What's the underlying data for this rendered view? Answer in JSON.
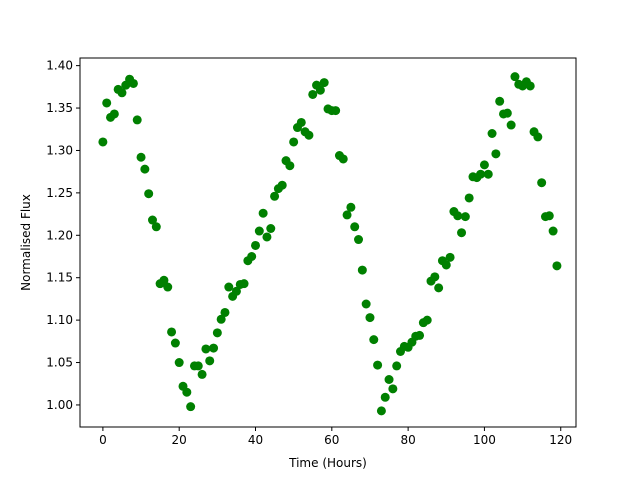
{
  "chart_data": {
    "type": "scatter",
    "title": "",
    "xlabel": "Time (Hours)",
    "ylabel": "Normalised Flux",
    "xlim": [
      -6,
      124
    ],
    "ylim": [
      0.974,
      1.409
    ],
    "xticks": [
      0,
      20,
      40,
      60,
      80,
      100,
      120
    ],
    "yticks": [
      1.0,
      1.05,
      1.1,
      1.15,
      1.2,
      1.25,
      1.3,
      1.35,
      1.4
    ],
    "xtick_labels": [
      "0",
      "20",
      "40",
      "60",
      "80",
      "100",
      "120"
    ],
    "ytick_labels": [
      "1.00",
      "1.05",
      "1.10",
      "1.15",
      "1.20",
      "1.25",
      "1.30",
      "1.35",
      "1.40"
    ],
    "grid": false,
    "legend": "none",
    "marker_color": "#008000",
    "series": [
      {
        "x": [
          0,
          1,
          2,
          3,
          4,
          5,
          6,
          7,
          8,
          9,
          10,
          11,
          12,
          13,
          14,
          15,
          16,
          17,
          18,
          19,
          20,
          21,
          22,
          23,
          24,
          25,
          26,
          27,
          28,
          29,
          30,
          31,
          32,
          33,
          34,
          35,
          36,
          37,
          38,
          39,
          40,
          41,
          42,
          43,
          44,
          45,
          46,
          47,
          48,
          49,
          50,
          51,
          52,
          53,
          54,
          55,
          56,
          57,
          58,
          59,
          60,
          61,
          62,
          63,
          64,
          65,
          66,
          67,
          68,
          69,
          70,
          71,
          72,
          73,
          74,
          75,
          76,
          77,
          78,
          79,
          80,
          81,
          82,
          83,
          84,
          85,
          86,
          87,
          88,
          89,
          90,
          91,
          92,
          93,
          94,
          95,
          96,
          97,
          98,
          99,
          100,
          101,
          102,
          103,
          104,
          105,
          106,
          107,
          108,
          109,
          110,
          111,
          112,
          113,
          114,
          115,
          116,
          117,
          118,
          119
        ],
        "y": [
          1.31,
          1.356,
          1.339,
          1.343,
          1.372,
          1.368,
          1.377,
          1.384,
          1.379,
          1.336,
          1.292,
          1.278,
          1.249,
          1.218,
          1.21,
          1.143,
          1.147,
          1.139,
          1.086,
          1.073,
          1.05,
          1.022,
          1.015,
          0.998,
          1.046,
          1.046,
          1.036,
          1.066,
          1.052,
          1.067,
          1.085,
          1.101,
          1.109,
          1.139,
          1.128,
          1.134,
          1.142,
          1.143,
          1.17,
          1.175,
          1.188,
          1.205,
          1.226,
          1.198,
          1.208,
          1.246,
          1.255,
          1.259,
          1.288,
          1.282,
          1.31,
          1.327,
          1.333,
          1.322,
          1.318,
          1.366,
          1.377,
          1.371,
          1.38,
          1.349,
          1.347,
          1.347,
          1.294,
          1.29,
          1.224,
          1.233,
          1.21,
          1.195,
          1.159,
          1.119,
          1.103,
          1.077,
          1.047,
          0.993,
          1.009,
          1.03,
          1.019,
          1.046,
          1.063,
          1.069,
          1.068,
          1.074,
          1.081,
          1.082,
          1.097,
          1.1,
          1.146,
          1.151,
          1.138,
          1.17,
          1.165,
          1.174,
          1.228,
          1.223,
          1.203,
          1.222,
          1.244,
          1.269,
          1.268,
          1.272,
          1.283,
          1.272,
          1.32,
          1.296,
          1.358,
          1.343,
          1.344,
          1.33,
          1.387,
          1.378,
          1.376,
          1.381,
          1.376,
          1.322,
          1.316,
          1.262,
          1.222,
          1.223,
          1.205,
          1.164
        ]
      }
    ]
  }
}
